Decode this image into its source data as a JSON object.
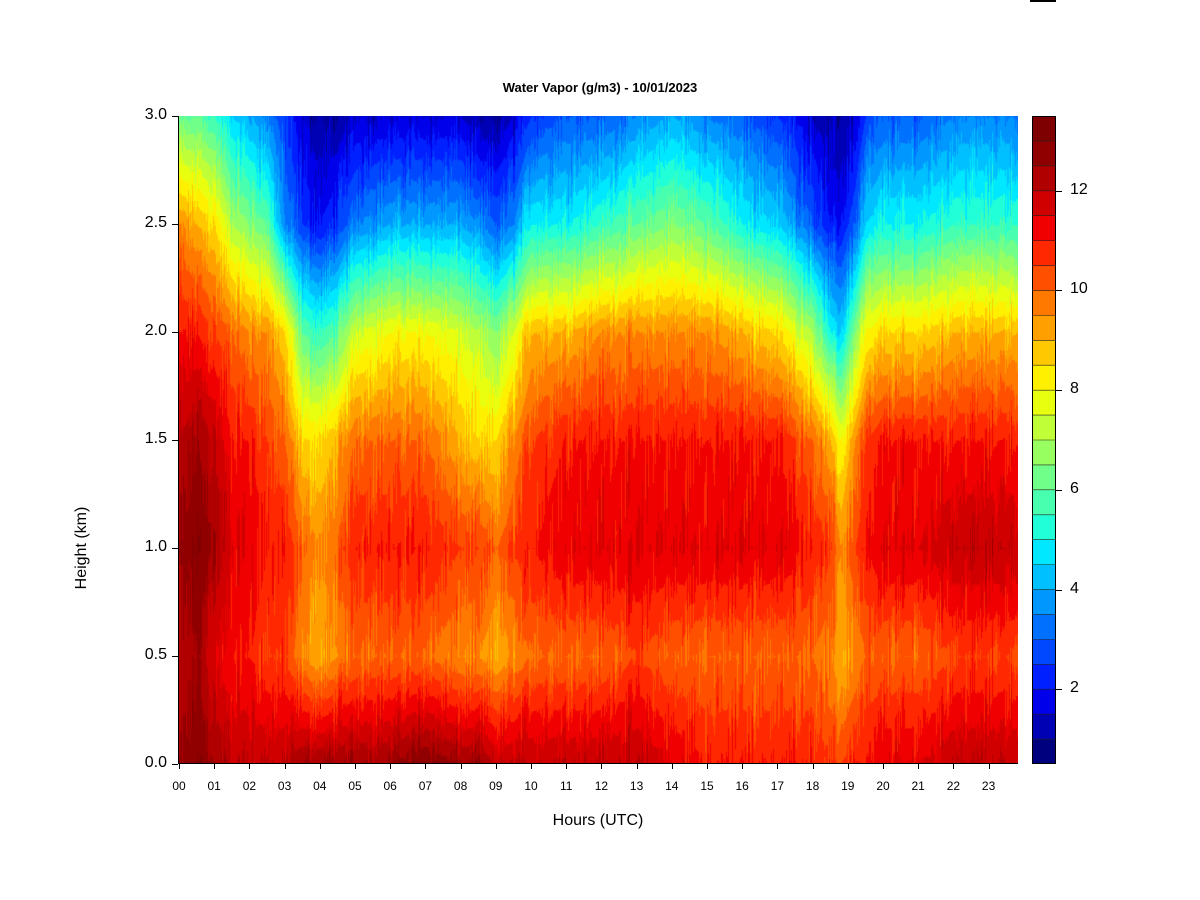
{
  "chart_data": {
    "type": "heatmap",
    "title": "Water Vapor (g/m3) - 10/01/2023",
    "xlabel": "Hours (UTC)",
    "ylabel": "Height (km)",
    "x_ticks": [
      "00",
      "01",
      "02",
      "03",
      "04",
      "05",
      "06",
      "07",
      "08",
      "09",
      "10",
      "11",
      "12",
      "13",
      "14",
      "15",
      "16",
      "17",
      "18",
      "19",
      "20",
      "21",
      "22",
      "23"
    ],
    "xlim": [
      0,
      23.95
    ],
    "y_ticks": [
      "0.0",
      "0.5",
      "1.0",
      "1.5",
      "2.0",
      "2.5",
      "3.0"
    ],
    "ylim": [
      0,
      3
    ],
    "colorbar": {
      "ticks": [
        "2",
        "4",
        "6",
        "8",
        "10",
        "12"
      ],
      "range": [
        0.5,
        13.5
      ],
      "levels": 26,
      "colors": [
        "#00007f",
        "#0000b4",
        "#0000ea",
        "#0020ff",
        "#0048ff",
        "#0070ff",
        "#0098ff",
        "#00c0ff",
        "#00e8ff",
        "#20ffd8",
        "#48ffb0",
        "#70ff88",
        "#98ff60",
        "#c0ff38",
        "#e8ff10",
        "#fff000",
        "#ffc800",
        "#ffa000",
        "#ff7800",
        "#ff5000",
        "#ff2800",
        "#f00000",
        "#d00000",
        "#b00000",
        "#900000",
        "#7f0000"
      ]
    },
    "columns": {
      "hours": [
        0.0,
        0.5,
        1.0,
        1.5,
        2.0,
        2.5,
        3.0,
        3.5,
        4.0,
        4.5,
        5.0,
        6.0,
        7.0,
        8.0,
        8.5,
        9.0,
        9.5,
        10.0,
        11.0,
        12.0,
        13.0,
        14.0,
        15.0,
        16.0,
        17.0,
        18.0,
        18.5,
        18.8,
        19.2,
        19.5,
        20.0,
        21.0,
        22.0,
        23.0,
        23.9
      ],
      "surface": [
        12.5,
        13.0,
        12.5,
        12.0,
        12.0,
        12.0,
        12.0,
        12.5,
        12.5,
        12.5,
        12.5,
        12.5,
        13.0,
        12.5,
        12.5,
        12.0,
        12.0,
        12.0,
        12.0,
        12.0,
        12.0,
        11.5,
        11.0,
        11.0,
        11.0,
        11.0,
        10.5,
        10.5,
        11.0,
        11.0,
        11.5,
        11.5,
        12.0,
        12.0,
        12.0
      ],
      "layer_0_5km": [
        12.0,
        12.5,
        11.5,
        11.0,
        11.0,
        10.5,
        10.5,
        9.5,
        9.0,
        9.5,
        10.0,
        10.0,
        10.0,
        9.5,
        9.5,
        9.0,
        9.5,
        10.0,
        10.0,
        10.0,
        10.5,
        10.0,
        10.0,
        10.0,
        10.0,
        10.0,
        9.5,
        9.0,
        9.5,
        10.0,
        10.0,
        10.0,
        10.5,
        10.5,
        10.5
      ],
      "layer_1_0km": [
        12.5,
        13.0,
        12.5,
        11.5,
        11.5,
        11.0,
        11.0,
        10.0,
        9.5,
        10.0,
        11.0,
        11.0,
        11.0,
        10.5,
        10.5,
        10.0,
        10.5,
        11.0,
        11.5,
        11.5,
        11.5,
        11.5,
        11.5,
        11.5,
        11.5,
        11.0,
        10.5,
        9.5,
        10.5,
        11.0,
        11.5,
        11.5,
        12.0,
        12.0,
        12.0
      ],
      "layer_1_5km": [
        12.0,
        12.5,
        12.0,
        11.0,
        11.0,
        10.5,
        10.0,
        8.5,
        8.5,
        9.0,
        10.0,
        10.0,
        10.0,
        9.0,
        8.5,
        8.5,
        9.5,
        10.5,
        11.0,
        11.0,
        11.0,
        11.0,
        11.0,
        11.0,
        11.0,
        10.0,
        9.0,
        8.0,
        9.5,
        10.5,
        11.0,
        11.0,
        11.0,
        11.0,
        11.0
      ],
      "layer_2_0km": [
        11.0,
        11.0,
        10.5,
        10.0,
        9.5,
        9.5,
        8.5,
        6.0,
        5.5,
        6.0,
        7.5,
        8.0,
        8.0,
        7.5,
        7.0,
        6.5,
        7.5,
        9.0,
        9.0,
        9.5,
        9.5,
        9.5,
        9.5,
        9.0,
        8.5,
        7.0,
        5.0,
        4.5,
        6.5,
        8.0,
        8.5,
        8.5,
        9.0,
        9.0,
        9.0
      ],
      "layer_2_5km": [
        9.5,
        9.0,
        8.5,
        7.0,
        6.5,
        6.0,
        3.5,
        2.5,
        2.0,
        2.5,
        3.5,
        4.0,
        4.0,
        4.0,
        3.5,
        3.0,
        3.5,
        5.0,
        5.0,
        5.5,
        6.0,
        6.5,
        6.0,
        5.0,
        4.5,
        3.0,
        2.0,
        2.0,
        3.0,
        4.5,
        5.0,
        5.0,
        5.5,
        5.5,
        5.5
      ],
      "layer_3_0km": [
        6.0,
        6.0,
        5.5,
        4.5,
        4.0,
        3.5,
        2.5,
        1.5,
        1.0,
        1.0,
        1.5,
        1.5,
        1.5,
        1.5,
        1.0,
        1.0,
        1.5,
        2.5,
        3.0,
        3.0,
        3.5,
        4.0,
        3.5,
        3.0,
        2.5,
        1.5,
        1.0,
        1.0,
        1.5,
        2.5,
        3.0,
        3.0,
        3.5,
        3.5,
        3.5
      ]
    },
    "heights_km": [
      0.0,
      0.5,
      1.0,
      1.5,
      2.0,
      2.5,
      3.0
    ]
  }
}
